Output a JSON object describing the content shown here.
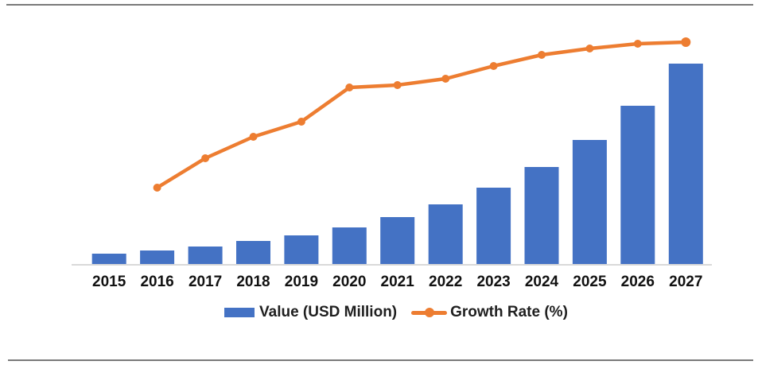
{
  "page": {
    "background": "#ffffff",
    "top_rule_color": "#7a7a7a",
    "bottom_rule_color": "#7a7a7a"
  },
  "chart_data": {
    "type": "combo-bar-line",
    "title": "",
    "xlabel": "",
    "ylabel": "",
    "categories": [
      "2015",
      "2016",
      "2017",
      "2018",
      "2019",
      "2020",
      "2021",
      "2022",
      "2023",
      "2024",
      "2025",
      "2026",
      "2027"
    ],
    "series": [
      {
        "name": "Value (USD Million)",
        "type": "bar",
        "color": "#4472C4",
        "values": [
          13,
          17,
          22,
          29,
          36,
          46,
          59,
          75,
          96,
          122,
          156,
          199,
          252
        ]
      },
      {
        "name": "Growth Rate (%)",
        "type": "line",
        "color": "#ED7D31",
        "values": [
          null,
          96,
          133,
          160,
          179,
          222,
          225,
          233,
          249,
          263,
          271,
          277,
          279
        ]
      }
    ],
    "ylim": [
      0,
      300
    ],
    "y_axis_shown": false,
    "grid": false,
    "legend_position": "bottom",
    "axis_line_color": "#d9d9d9",
    "text_color": "#111111"
  }
}
